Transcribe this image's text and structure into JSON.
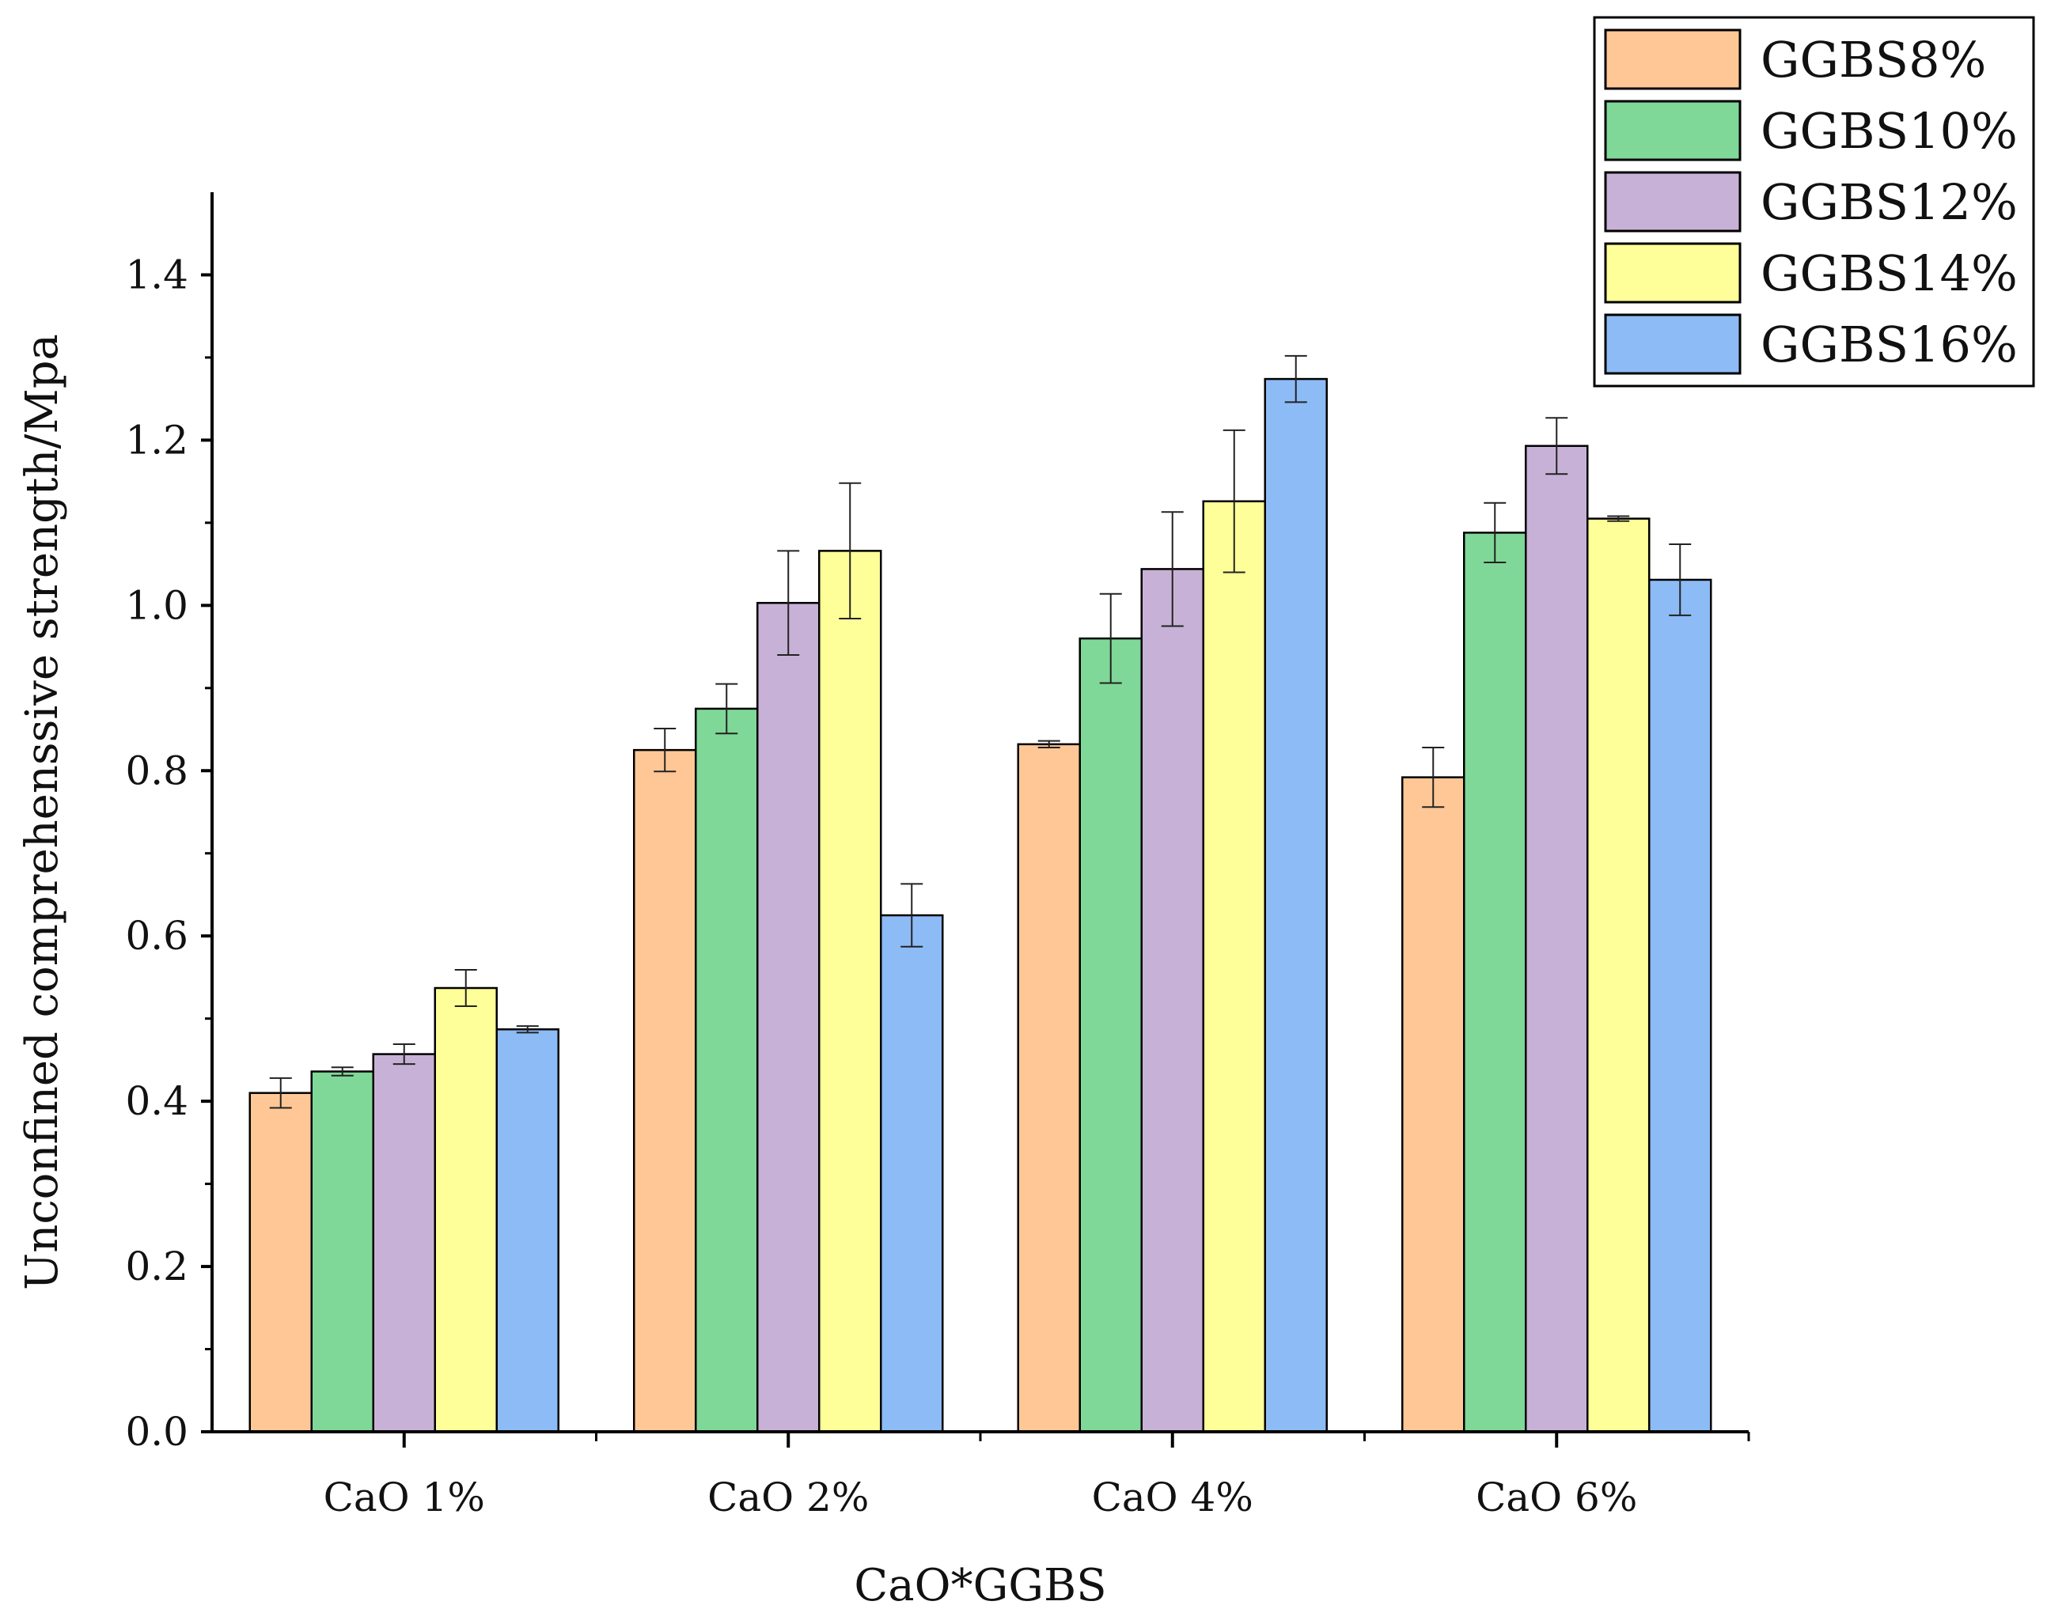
{
  "chart_data": {
    "type": "bar",
    "title": "",
    "xlabel": "CaO*GGBS",
    "ylabel": "Unconfined comprehenssive strength/Mpa",
    "categories": [
      "CaO 1%",
      "CaO 2%",
      "CaO 4%",
      "CaO 6%"
    ],
    "ylim": [
      0,
      1.5
    ],
    "yticks": [
      0.0,
      0.2,
      0.4,
      0.6,
      0.8,
      1.0,
      1.2,
      1.4
    ],
    "ytick_labels": [
      "0.0",
      "0.2",
      "0.4",
      "0.6",
      "0.8",
      "1.0",
      "1.2",
      "1.4"
    ],
    "legend_position": "top-right",
    "series": [
      {
        "name": "GGBS8%",
        "color": "#ffc795",
        "values": [
          0.41,
          0.825,
          0.832,
          0.792
        ],
        "errors": [
          0.018,
          0.026,
          0.004,
          0.036
        ]
      },
      {
        "name": "GGBS10%",
        "color": "#7fd897",
        "values": [
          0.436,
          0.875,
          0.96,
          1.088
        ],
        "errors": [
          0.005,
          0.03,
          0.054,
          0.036
        ]
      },
      {
        "name": "GGBS12%",
        "color": "#c8b1d6",
        "values": [
          0.457,
          1.003,
          1.044,
          1.193
        ],
        "errors": [
          0.012,
          0.063,
          0.069,
          0.034
        ]
      },
      {
        "name": "GGBS14%",
        "color": "#ffff99",
        "values": [
          0.537,
          1.066,
          1.126,
          1.105
        ],
        "errors": [
          0.022,
          0.082,
          0.086,
          0.003
        ]
      },
      {
        "name": "GGBS16%",
        "color": "#8dbbf5",
        "values": [
          0.487,
          0.625,
          1.274,
          1.031
        ],
        "errors": [
          0.004,
          0.038,
          0.028,
          0.043
        ]
      }
    ]
  }
}
